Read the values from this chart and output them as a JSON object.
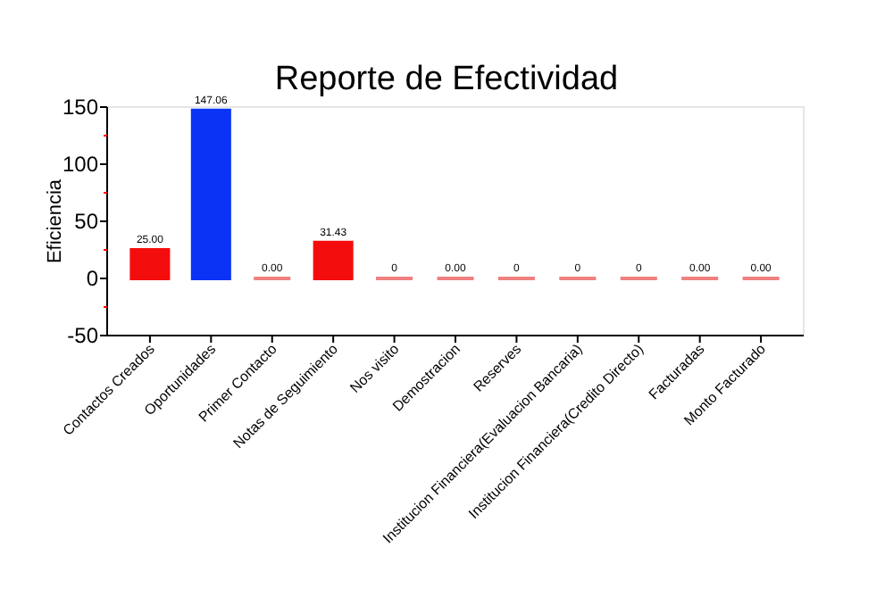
{
  "chart_data": {
    "type": "bar",
    "title": "Reporte de Efectividad",
    "ylabel": "Eficiencia",
    "categories": [
      "Contactos Creados",
      "Oportunidades",
      "Primer Contacto",
      "Notas de Seguimiento",
      "Nos visito",
      "Demostracion",
      "Reserves",
      "Institucion Financiera(Evaluacion Bancaria)",
      "Institucion Financiera(Credito Directo)",
      "Facturadas",
      "Monto Facturado"
    ],
    "values": [
      25.0,
      147.06,
      0,
      31.43,
      0,
      0,
      0,
      0,
      0,
      0,
      0
    ],
    "colors": [
      "#f40d0d",
      "#0a33f5",
      "#f08080",
      "#f40d0d",
      "#f08080",
      "#f08080",
      "#f08080",
      "#f08080",
      "#f08080",
      "#f08080",
      "#f08080"
    ],
    "value_labels": [
      "25.00",
      "147.06",
      "0.00",
      "31.43",
      "0",
      "0.00",
      "0",
      "0",
      "0",
      "0.00",
      "0.00"
    ],
    "ylim": [
      -50,
      150
    ],
    "yticks": [
      -50,
      {
        "value": -25,
        "label": null
      },
      0,
      {
        "value": 25,
        "label": null
      },
      50,
      {
        "value": 75,
        "label": null
      },
      100,
      {
        "value": 125,
        "label": null
      },
      150
    ],
    "grid": false
  }
}
